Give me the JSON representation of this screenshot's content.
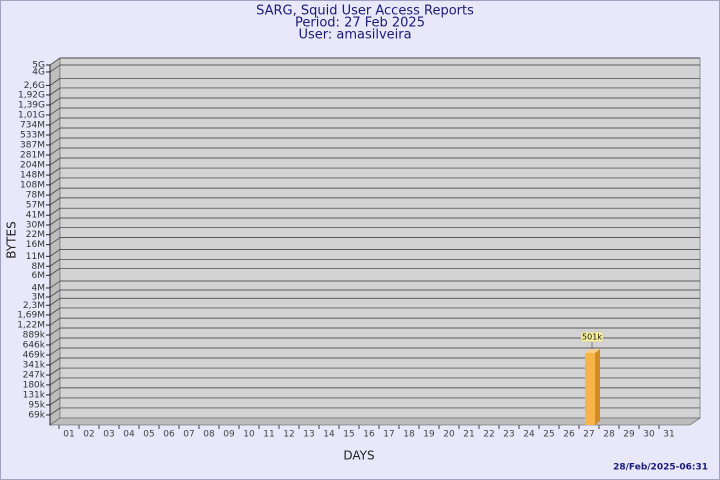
{
  "chart_data": {
    "type": "bar",
    "title": "SARG, Squid User Access Reports",
    "period": "Period: 27 Feb 2025",
    "user": "User: amasilveira",
    "x_label": "DAYS",
    "y_label": "BYTES",
    "footer": "28/Feb/2025-06:31",
    "log_scale": true,
    "grid": true,
    "categories": [
      "01",
      "02",
      "03",
      "04",
      "05",
      "06",
      "07",
      "08",
      "09",
      "10",
      "11",
      "12",
      "13",
      "14",
      "15",
      "16",
      "17",
      "18",
      "19",
      "20",
      "21",
      "22",
      "23",
      "24",
      "25",
      "26",
      "27",
      "28",
      "29",
      "30",
      "31"
    ],
    "series": [
      {
        "color": "#f5b54a",
        "values": [
          null,
          null,
          null,
          null,
          null,
          null,
          null,
          null,
          null,
          null,
          null,
          null,
          null,
          null,
          null,
          null,
          null,
          null,
          null,
          null,
          null,
          null,
          null,
          null,
          null,
          null,
          501000,
          null,
          null,
          null,
          null
        ],
        "value_labels": [
          null,
          null,
          null,
          null,
          null,
          null,
          null,
          null,
          null,
          null,
          null,
          null,
          null,
          null,
          null,
          null,
          null,
          null,
          null,
          null,
          null,
          null,
          null,
          null,
          null,
          null,
          "501k",
          null,
          null,
          null,
          null
        ]
      }
    ],
    "ylim": [
      50000,
      5000000000
    ],
    "yticks": [
      {
        "value": 69000,
        "label": "69k"
      },
      {
        "value": 95000,
        "label": "95k"
      },
      {
        "value": 131000,
        "label": "131k"
      },
      {
        "value": 180000,
        "label": "180k"
      },
      {
        "value": 247000,
        "label": "247k"
      },
      {
        "value": 341000,
        "label": "341k"
      },
      {
        "value": 469000,
        "label": "469k"
      },
      {
        "value": 646000,
        "label": "646k"
      },
      {
        "value": 889000,
        "label": "889k"
      },
      {
        "value": 1220000,
        "label": "1,22M"
      },
      {
        "value": 1690000,
        "label": "1,69M"
      },
      {
        "value": 2300000,
        "label": "2,3M"
      },
      {
        "value": 3000000,
        "label": "3M"
      },
      {
        "value": 4000000,
        "label": "4M"
      },
      {
        "value": 6000000,
        "label": "6M"
      },
      {
        "value": 8000000,
        "label": "8M"
      },
      {
        "value": 11000000,
        "label": "11M"
      },
      {
        "value": 16000000,
        "label": "16M"
      },
      {
        "value": 22000000,
        "label": "22M"
      },
      {
        "value": 30000000,
        "label": "30M"
      },
      {
        "value": 41000000,
        "label": "41M"
      },
      {
        "value": 57000000,
        "label": "57M"
      },
      {
        "value": 78000000,
        "label": "78M"
      },
      {
        "value": 108000000,
        "label": "108M"
      },
      {
        "value": 148000000,
        "label": "148M"
      },
      {
        "value": 204000000,
        "label": "204M"
      },
      {
        "value": 281000000,
        "label": "281M"
      },
      {
        "value": 387000000,
        "label": "387M"
      },
      {
        "value": 533000000,
        "label": "533M"
      },
      {
        "value": 734000000,
        "label": "734M"
      },
      {
        "value": 1010000000,
        "label": "1,01G"
      },
      {
        "value": 1390000000,
        "label": "1,39G"
      },
      {
        "value": 1920000000,
        "label": "1,92G"
      },
      {
        "value": 2600000000,
        "label": "2,6G"
      },
      {
        "value": 4000000000,
        "label": "4G"
      },
      {
        "value": 5000000000,
        "label": "5G"
      }
    ]
  }
}
